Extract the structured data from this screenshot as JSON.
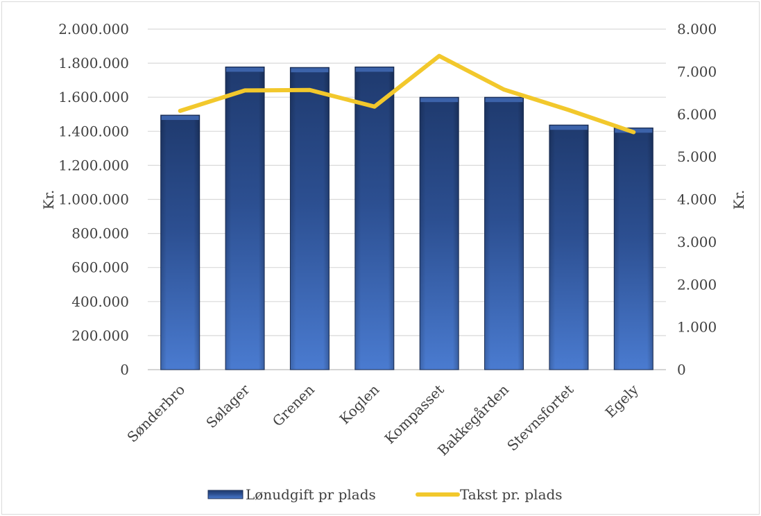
{
  "chart_data": {
    "type": "bar",
    "categories": [
      "Sønderbro",
      "Sølager",
      "Grenen",
      "Koglen",
      "Kompasset",
      "Bakkegården",
      "Stevnsfortet",
      "Egely"
    ],
    "series": [
      {
        "name": "Lønudgift pr plads",
        "type": "bar",
        "axis": "left",
        "values": [
          1495000,
          1778000,
          1775000,
          1778000,
          1600000,
          1600000,
          1437000,
          1420000
        ],
        "color": "#2f5597"
      },
      {
        "name": "Takst pr. plads",
        "type": "line",
        "axis": "right",
        "values": [
          6080,
          6560,
          6570,
          6180,
          7370,
          6580,
          6100,
          5580
        ],
        "color": "#f2c82c"
      }
    ],
    "y_left": {
      "label": "Kr.",
      "range": [
        0,
        2000000
      ],
      "ticks": [
        "0",
        "200.000",
        "400.000",
        "600.000",
        "800.000",
        "1.000.000",
        "1.200.000",
        "1.400.000",
        "1.600.000",
        "1.800.000",
        "2.000.000"
      ]
    },
    "y_right": {
      "label": "Kr.",
      "range": [
        0,
        8000
      ],
      "ticks": [
        "0",
        "1.000",
        "2.000",
        "3.000",
        "4.000",
        "5.000",
        "6.000",
        "7.000",
        "8.000"
      ]
    },
    "grid": true,
    "legend": "bottom"
  }
}
